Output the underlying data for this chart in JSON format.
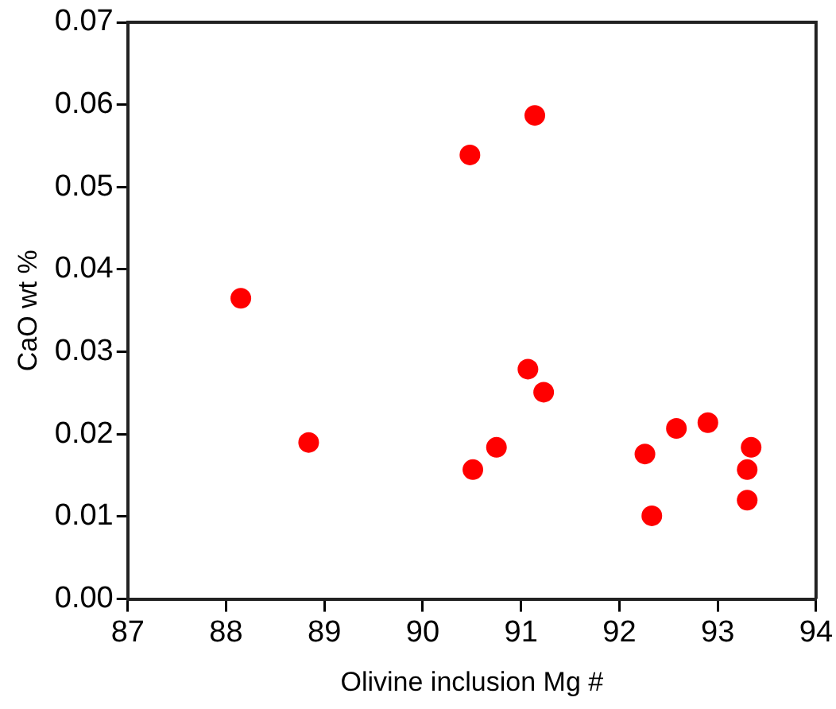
{
  "chart_data": {
    "type": "scatter",
    "xlabel": "Olivine inclusion Mg #",
    "ylabel": "CaO wt %",
    "x": [
      88.15,
      88.84,
      90.48,
      91.14,
      91.07,
      91.23,
      90.51,
      90.75,
      92.26,
      92.33,
      92.58,
      92.9,
      93.34,
      93.3,
      93.3
    ],
    "series": [
      {
        "color": "#ff0000",
        "values": [
          0.0365,
          0.019,
          0.0539,
          0.0587,
          0.0279,
          0.0251,
          0.0157,
          0.0184,
          0.0176,
          0.0101,
          0.0207,
          0.0214,
          0.0184,
          0.0157,
          0.012
        ]
      }
    ],
    "xlim": [
      87,
      94
    ],
    "xticks": [
      87,
      88,
      89,
      90,
      91,
      92,
      93,
      94
    ],
    "ylim": [
      0,
      0.07
    ],
    "yticks": [
      {
        "value": 0,
        "label": "0.00"
      },
      0.01,
      0.02,
      0.03,
      0.04,
      0.05,
      0.06,
      0.07
    ],
    "grid": false,
    "legend": false,
    "marker": "circle"
  }
}
